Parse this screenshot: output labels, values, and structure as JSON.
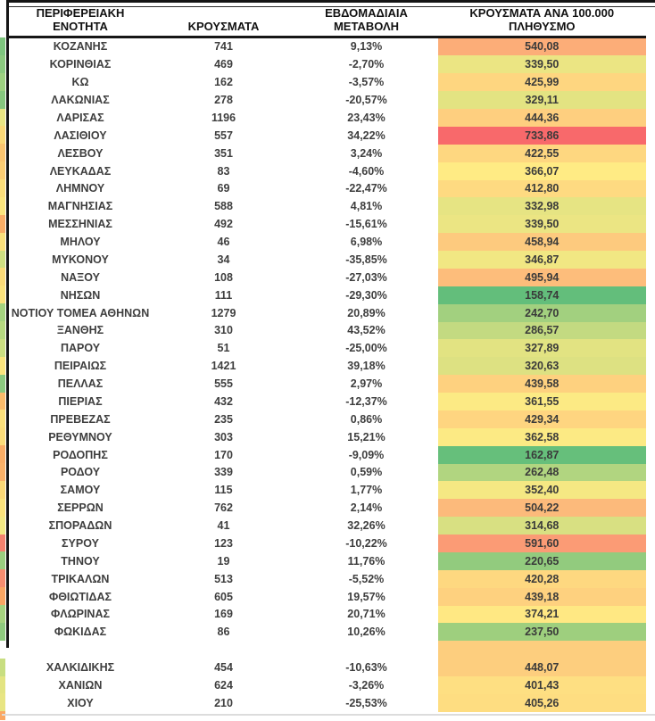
{
  "chart_data": {
    "type": "table",
    "title": "",
    "columns": [
      "ΠΕΡΙΦΕΡΕΙΑΚΗ ΕΝΟΤΗΤΑ",
      "ΚΡΟΥΣΜΑΤΑ",
      "ΕΒΔΟΜΑΔΙΑΙΑ ΜΕΤΑΒΟΛΗ",
      "ΚΡΟΥΣΜΑΤΑ ΑΝΑ 100.000 ΠΛΗΘΥΣΜΟ"
    ],
    "columns_display": [
      "ΠΕΡΙΦΕΡΕΙΑΚΗ\nΕΝΟΤΗΤΑ",
      "ΚΡΟΥΣΜΑΤΑ",
      "ΕΒΔΟΜΑΔΙΑΙΑ\nΜΕΤΑΒΟΛΗ",
      "ΚΡΟΥΣΜΑΤΑ ΑΝΑ 100.000\nΠΛΗΘΥΣΜΟ"
    ],
    "heat_scale": {
      "applies_to": "ΚΡΟΥΣΜΑΤΑ ΑΝΑ 100.000 ΠΛΗΘΥΣΜΟ",
      "min": 158.74,
      "mid": 366.07,
      "max": 733.86,
      "min_color": "#63BE7B",
      "mid_color": "#FFEB84",
      "max_color": "#F8696B"
    },
    "rows": [
      {
        "region": "ΚΟΖΑΝΗΣ",
        "cases": "741",
        "weekly_change": "9,13%",
        "per_100k": "540,08"
      },
      {
        "region": "ΚΟΡΙΝΘΙΑΣ",
        "cases": "469",
        "weekly_change": "-2,70%",
        "per_100k": "339,50"
      },
      {
        "region": "ΚΩ",
        "cases": "162",
        "weekly_change": "-3,57%",
        "per_100k": "425,99"
      },
      {
        "region": "ΛΑΚΩΝΙΑΣ",
        "cases": "278",
        "weekly_change": "-20,57%",
        "per_100k": "329,11"
      },
      {
        "region": "ΛΑΡΙΣΑΣ",
        "cases": "1196",
        "weekly_change": "23,43%",
        "per_100k": "444,36"
      },
      {
        "region": "ΛΑΣΙΘΙΟΥ",
        "cases": "557",
        "weekly_change": "34,22%",
        "per_100k": "733,86"
      },
      {
        "region": "ΛΕΣΒΟΥ",
        "cases": "351",
        "weekly_change": "3,24%",
        "per_100k": "422,55"
      },
      {
        "region": "ΛΕΥΚΑΔΑΣ",
        "cases": "83",
        "weekly_change": "-4,60%",
        "per_100k": "366,07"
      },
      {
        "region": "ΛΗΜΝΟΥ",
        "cases": "69",
        "weekly_change": "-22,47%",
        "per_100k": "412,80"
      },
      {
        "region": "ΜΑΓΝΗΣΙΑΣ",
        "cases": "588",
        "weekly_change": "4,81%",
        "per_100k": "332,98"
      },
      {
        "region": "ΜΕΣΣΗΝΙΑΣ",
        "cases": "492",
        "weekly_change": "-15,61%",
        "per_100k": "339,50"
      },
      {
        "region": "ΜΗΛΟΥ",
        "cases": "46",
        "weekly_change": "6,98%",
        "per_100k": "458,94"
      },
      {
        "region": "ΜΥΚΟΝΟΥ",
        "cases": "34",
        "weekly_change": "-35,85%",
        "per_100k": "346,87"
      },
      {
        "region": "ΝΑΞΟΥ",
        "cases": "108",
        "weekly_change": "-27,03%",
        "per_100k": "495,94"
      },
      {
        "region": "ΝΗΣΩΝ",
        "cases": "111",
        "weekly_change": "-29,30%",
        "per_100k": "158,74"
      },
      {
        "region": "ΝΟΤΙΟΥ ΤΟΜΕΑ ΑΘΗΝΩΝ",
        "cases": "1279",
        "weekly_change": "20,89%",
        "per_100k": "242,70"
      },
      {
        "region": "ΞΑΝΘΗΣ",
        "cases": "310",
        "weekly_change": "43,52%",
        "per_100k": "286,57"
      },
      {
        "region": "ΠΑΡΟΥ",
        "cases": "51",
        "weekly_change": "-25,00%",
        "per_100k": "327,89"
      },
      {
        "region": "ΠΕΙΡΑΙΩΣ",
        "cases": "1421",
        "weekly_change": "39,18%",
        "per_100k": "320,63"
      },
      {
        "region": "ΠΕΛΛΑΣ",
        "cases": "555",
        "weekly_change": "2,97%",
        "per_100k": "439,58"
      },
      {
        "region": "ΠΙΕΡΙΑΣ",
        "cases": "432",
        "weekly_change": "-12,37%",
        "per_100k": "361,55"
      },
      {
        "region": "ΠΡΕΒΕΖΑΣ",
        "cases": "235",
        "weekly_change": "0,86%",
        "per_100k": "429,34"
      },
      {
        "region": "ΡΕΘΥΜΝΟΥ",
        "cases": "303",
        "weekly_change": "15,21%",
        "per_100k": "362,58"
      },
      {
        "region": "ΡΟΔΟΠΗΣ",
        "cases": "170",
        "weekly_change": "-9,09%",
        "per_100k": "162,87"
      },
      {
        "region": "ΡΟΔΟΥ",
        "cases": "339",
        "weekly_change": "0,59%",
        "per_100k": "262,48"
      },
      {
        "region": "ΣΑΜΟΥ",
        "cases": "115",
        "weekly_change": "1,77%",
        "per_100k": "352,40"
      },
      {
        "region": "ΣΕΡΡΩΝ",
        "cases": "762",
        "weekly_change": "2,14%",
        "per_100k": "504,22"
      },
      {
        "region": "ΣΠΟΡΑΔΩΝ",
        "cases": "41",
        "weekly_change": "32,26%",
        "per_100k": "314,68"
      },
      {
        "region": "ΣΥΡΟΥ",
        "cases": "123",
        "weekly_change": "-10,22%",
        "per_100k": "591,60"
      },
      {
        "region": "ΤΗΝΟΥ",
        "cases": "19",
        "weekly_change": "11,76%",
        "per_100k": "220,65"
      },
      {
        "region": "ΤΡΙΚΑΛΩΝ",
        "cases": "513",
        "weekly_change": "-5,52%",
        "per_100k": "420,28"
      },
      {
        "region": "ΦΘΙΩΤΙΔΑΣ",
        "cases": "605",
        "weekly_change": "19,57%",
        "per_100k": "439,18"
      },
      {
        "region": "ΦΛΩΡΙΝΑΣ",
        "cases": "169",
        "weekly_change": "20,71%",
        "per_100k": "374,21"
      },
      {
        "region": "ΦΩΚΙΔΑΣ",
        "cases": "86",
        "weekly_change": "10,26%",
        "per_100k": "237,50"
      },
      {
        "region": "",
        "cases": "",
        "weekly_change": "",
        "per_100k": "",
        "per_100k_cell_color": "#FDCE7E"
      },
      {
        "region": "ΧΑΛΚΙΔΙΚΗΣ",
        "cases": "454",
        "weekly_change": "-10,63%",
        "per_100k": "448,07"
      },
      {
        "region": "ΧΑΝΙΩΝ",
        "cases": "624",
        "weekly_change": "-3,26%",
        "per_100k": "401,43"
      },
      {
        "region": "ΧΙΟΥ",
        "cases": "210",
        "weekly_change": "-25,53%",
        "per_100k": "405,26"
      }
    ]
  },
  "left_strip": {
    "description": "right sliver of a cut-off heat-colored column along the left image edge",
    "colors": [
      "#7EC57E",
      "#8BC97F",
      "#9DD080",
      "#86C77E",
      "#E9E583",
      "#FBD977",
      "#FBC56F",
      "#FBCD73",
      "#FBDE7A",
      "#FBE57D",
      "#FAAE66",
      "#FBE07B",
      "#CFDF81",
      "#FBDB78",
      "#FBE27C",
      "#A5D37F",
      "#B6D980",
      "#CBDE81",
      "#FBE47D",
      "#8CC97F",
      "#FBBB6B",
      "#FBE07B",
      "#FBDC79",
      "#FAAD65",
      "#FAB168",
      "#FBD876",
      "#FBE37C",
      "#F2E883",
      "#F4826E",
      "#9ACE7F",
      "#F68D70",
      "#FAA663",
      "#A7D37F",
      "#8FCA7E",
      "#FFFFFF",
      "#C8DE81",
      "#E3E482",
      "#E8E583"
    ],
    "bottom_extra_color": "#FAA763"
  },
  "colors": {
    "border_black": "#161616",
    "body_text": "#3e3e3e",
    "header_text": "#111111",
    "background": "#ffffff"
  }
}
